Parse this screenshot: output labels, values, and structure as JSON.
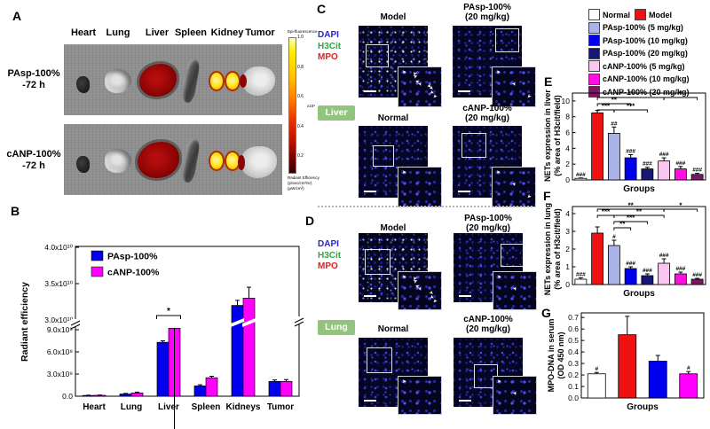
{
  "panelA": {
    "label": "A",
    "organ_labels": [
      "Heart",
      "Lung",
      "Liver",
      "Spleen",
      "Kidney",
      "Tumor"
    ],
    "rows": [
      {
        "line1": "PAsp-100%",
        "line2": "-72 h"
      },
      {
        "line1": "cANP-100%",
        "line2": "-72 h"
      }
    ],
    "colorbar": {
      "title": "Epi-fluorescence",
      "ticks": [
        "1.0",
        "0.8",
        "0.6",
        "0.4",
        "0.2"
      ],
      "multiplier": "x10⁹",
      "caption_lines": [
        "Radiant Efficiency",
        "(p/sec/cm²/sr)",
        "(μW/cm²)"
      ]
    }
  },
  "panelB": {
    "label": "B"
  },
  "panelC": {
    "label": "C",
    "organ": "Liver",
    "stains": [
      {
        "text": "DAPI",
        "color": "#2222dd"
      },
      {
        "text": "H3Cit",
        "color": "#28a745"
      },
      {
        "text": "MPO",
        "color": "#e02020"
      }
    ],
    "tiles": [
      {
        "title_lines": [
          "Model"
        ],
        "dense": true,
        "arrows": 9,
        "sel": [
          8,
          21,
          24
        ]
      },
      {
        "title_lines": [
          "PAsp-100%",
          "(20 mg/kg)"
        ],
        "dense": false,
        "arrows": 3,
        "sel": [
          48,
          3,
          25
        ]
      },
      {
        "title_lines": [
          "Normal"
        ],
        "dense": false,
        "arrows": 1,
        "sel": [
          16,
          22,
          22
        ]
      },
      {
        "title_lines": [
          "cANP-100%",
          "(20 mg/kg)"
        ],
        "dense": false,
        "arrows": 3,
        "sel": [
          10,
          8,
          26
        ]
      }
    ]
  },
  "panelD": {
    "label": "D",
    "organ": "Lung",
    "stains": [
      {
        "text": "DAPI",
        "color": "#2222dd"
      },
      {
        "text": "H3Cit",
        "color": "#28a745"
      },
      {
        "text": "MPO",
        "color": "#e02020"
      }
    ],
    "tiles": [
      {
        "title_lines": [
          "Model"
        ],
        "dense": true,
        "arrows": 8,
        "sel": [
          7,
          18,
          27
        ]
      },
      {
        "title_lines": [
          "PAsp-100%",
          "(20 mg/kg)"
        ],
        "dense": false,
        "arrows": 2,
        "sel": [
          53,
          12,
          24
        ]
      },
      {
        "title_lines": [
          "Normal"
        ],
        "dense": false,
        "arrows": 1,
        "sel": [
          9,
          11,
          27
        ]
      },
      {
        "title_lines": [
          "cANP-100%",
          "(20 mg/kg)"
        ],
        "dense": false,
        "arrows": 2,
        "sel": [
          23,
          30,
          25
        ]
      }
    ]
  },
  "legend": {
    "items": [
      {
        "label": "Normal",
        "color": "#ffffff"
      },
      {
        "label": "Model",
        "color": "#ee1111"
      },
      {
        "label": "PAsp-100% (5 mg/kg)",
        "color": "#aab4e8"
      },
      {
        "label": "PAsp-100% (10 mg/kg)",
        "color": "#0000ee"
      },
      {
        "label": "PAsp-100% (20 mg/kg)",
        "color": "#171778"
      },
      {
        "label": "cANP-100% (5 mg/kg)",
        "color": "#f9c6ef"
      },
      {
        "label": "cANP-100% (10 mg/kg)",
        "color": "#ff10e0"
      },
      {
        "label": "cANP-100% (20 mg/kg)",
        "color": "#7c1765"
      }
    ]
  },
  "panelE": {
    "label": "E"
  },
  "panelF": {
    "label": "F"
  },
  "panelG": {
    "label": "G"
  },
  "chart_data": [
    {
      "id": "B",
      "type": "bar",
      "title": "",
      "ylabel": "Radiant efficiency",
      "xlabel": "",
      "categories": [
        "Heart",
        "Lung",
        "Liver",
        "Spleen",
        "Kidneys",
        "Tumor"
      ],
      "series": [
        {
          "name": "PAsp-100%",
          "color": "#0000ee",
          "values": [
            100000000.0,
            300000000.0,
            7300000000.0,
            1400000000.0,
            32000000000.0,
            2000000000.0
          ],
          "errors": [
            40000000.0,
            80000000.0,
            200000000.0,
            150000000.0,
            700000000.0,
            200000000.0
          ]
        },
        {
          "name": "cANP-100%",
          "color": "#ff00ff",
          "values": [
            120000000.0,
            450000000.0,
            9200000000.0,
            2500000000.0,
            33000000000.0,
            2000000000.0
          ],
          "errors": [
            40000000.0,
            100000000.0,
            500000000.0,
            200000000.0,
            1500000000.0,
            250000000.0
          ]
        }
      ],
      "yticks_lower": [
        [
          0,
          "0.0"
        ],
        [
          3000000000.0,
          "3.0x10⁹"
        ],
        [
          6000000000.0,
          "6.0x10⁹"
        ],
        [
          9000000000.0,
          "9.0x10⁹"
        ]
      ],
      "yticks_upper": [
        [
          30000000000.0,
          "3.0x10¹⁰"
        ],
        [
          35000000000.0,
          "3.5x10¹⁰"
        ],
        [
          40000000000.0,
          "4.0x10¹⁰"
        ]
      ],
      "broken_axis": true,
      "significance": {
        "cat": 2,
        "label": "*"
      }
    },
    {
      "id": "E",
      "type": "bar",
      "ylabel_lines": [
        "NETs expression in liver",
        "(% area of H3cit/field)"
      ],
      "xlabel": "Groups",
      "ylim": [
        0,
        10
      ],
      "categories": [
        "Normal",
        "Model",
        "PAsp-100% (5 mg/kg)",
        "PAsp-100% (10 mg/kg)",
        "PAsp-100% (20 mg/kg)",
        "cANP-100% (5 mg/kg)",
        "cANP-100% (10 mg/kg)",
        "cANP-100% (20 mg/kg)"
      ],
      "values": [
        0.2,
        8.5,
        5.9,
        2.8,
        1.4,
        2.4,
        1.4,
        0.7
      ],
      "errors": [
        0.05,
        0.3,
        0.8,
        0.4,
        0.2,
        0.4,
        0.3,
        0.15
      ],
      "colors": [
        "#ffffff",
        "#ee1111",
        "#aab4e8",
        "#0000ee",
        "#171778",
        "#f9c6ef",
        "#ff10e0",
        "#7c1765"
      ],
      "hash": [
        "###",
        "",
        "##",
        "###",
        "###",
        "###",
        "###",
        "###"
      ],
      "yticks": [
        [
          0,
          "0"
        ],
        [
          2,
          "2"
        ],
        [
          4,
          "4"
        ],
        [
          6,
          "6"
        ],
        [
          8,
          "8"
        ],
        [
          10,
          "10"
        ]
      ],
      "brackets": [
        {
          "a": 1,
          "b": 5,
          "label": "**",
          "row": 0
        },
        {
          "a": 5,
          "b": 7,
          "label": "*",
          "row": 0
        },
        {
          "a": 1,
          "b": 3,
          "label": "**",
          "row": 1
        },
        {
          "a": 1,
          "b": 2,
          "label": "***",
          "row": 2
        },
        {
          "a": 2,
          "b": 4,
          "label": "***",
          "row": 2
        }
      ]
    },
    {
      "id": "F",
      "type": "bar",
      "ylabel_lines": [
        "NETs expression in lung",
        "(% area of H3cit/field)"
      ],
      "xlabel": "Groups",
      "ylim": [
        0,
        4
      ],
      "categories": [
        "Normal",
        "Model",
        "PAsp-100% (5 mg/kg)",
        "PAsp-100% (10 mg/kg)",
        "PAsp-100% (20 mg/kg)",
        "cANP-100% (5 mg/kg)",
        "cANP-100% (10 mg/kg)",
        "cANP-100% (20 mg/kg)"
      ],
      "values": [
        0.3,
        2.9,
        2.2,
        0.9,
        0.5,
        1.2,
        0.6,
        0.3
      ],
      "errors": [
        0.08,
        0.35,
        0.3,
        0.1,
        0.1,
        0.25,
        0.1,
        0.05
      ],
      "colors": [
        "#ffffff",
        "#ee1111",
        "#aab4e8",
        "#0000ee",
        "#171778",
        "#f9c6ef",
        "#ff10e0",
        "#7c1765"
      ],
      "hash": [
        "###",
        "",
        "#",
        "###",
        "###",
        "###",
        "###",
        "###"
      ],
      "yticks": [
        [
          0,
          "0"
        ],
        [
          1,
          "1"
        ],
        [
          2,
          "2"
        ],
        [
          3,
          "3"
        ],
        [
          4,
          "4"
        ]
      ],
      "brackets": [
        {
          "a": 1,
          "b": 5,
          "label": "**",
          "row": 0
        },
        {
          "a": 5,
          "b": 7,
          "label": "*",
          "row": 0
        },
        {
          "a": 1,
          "b": 2,
          "label": "***",
          "row": 1
        },
        {
          "a": 2,
          "b": 5,
          "label": "**",
          "row": 1
        },
        {
          "a": 2,
          "b": 4,
          "label": "***",
          "row": 2
        },
        {
          "a": 2,
          "b": 3,
          "label": "**",
          "row": 3
        }
      ]
    },
    {
      "id": "G",
      "type": "bar",
      "ylabel_lines": [
        "MPO-DNA in serum",
        "(OD 450 nm)"
      ],
      "xlabel": "Groups",
      "ylim": [
        0,
        0.7
      ],
      "categories": [
        "Normal",
        "Model",
        "PAsp-100%",
        "cANP-100%"
      ],
      "values": [
        0.21,
        0.55,
        0.32,
        0.21
      ],
      "errors": [
        0.012,
        0.16,
        0.05,
        0.02
      ],
      "colors": [
        "#ffffff",
        "#ee1111",
        "#0000ee",
        "#ff00ff"
      ],
      "hash": [
        "#",
        "",
        "",
        "#"
      ],
      "yticks": [
        [
          0,
          "0.0"
        ],
        [
          0.1,
          "0.1"
        ],
        [
          0.2,
          "0.2"
        ],
        [
          0.3,
          "0.3"
        ],
        [
          0.4,
          "0.4"
        ],
        [
          0.5,
          "0.5"
        ],
        [
          0.6,
          "0.6"
        ],
        [
          0.7,
          "0.7"
        ]
      ],
      "brackets": []
    }
  ]
}
